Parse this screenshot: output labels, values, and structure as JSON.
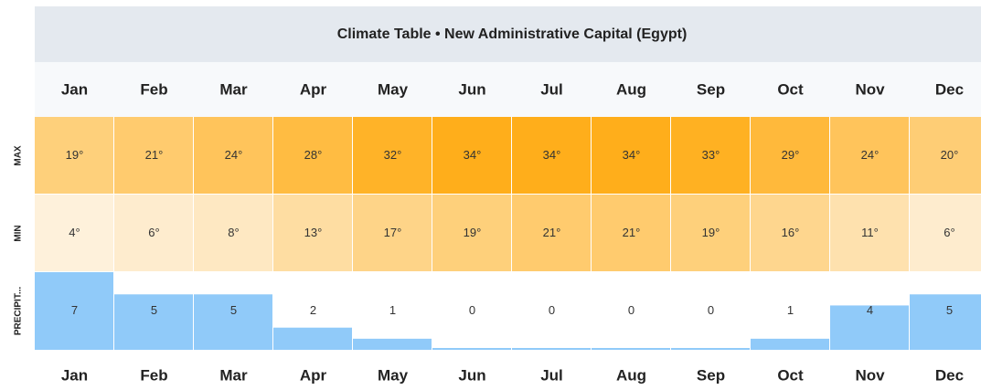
{
  "title": "Climate Table • New Administrative Capital (Egypt)",
  "months": [
    "Jan",
    "Feb",
    "Mar",
    "Apr",
    "May",
    "Jun",
    "Jul",
    "Aug",
    "Sep",
    "Oct",
    "Nov",
    "Dec"
  ],
  "heat_colors": [
    "#fef3e2",
    "#ffa500"
  ],
  "bar_color": "#90caf9",
  "rows": [
    {
      "label": "MAX",
      "values": [
        19,
        21,
        24,
        28,
        32,
        34,
        34,
        34,
        33,
        29,
        24,
        20
      ],
      "value_labels": [
        "19°",
        "21°",
        "24°",
        "28°",
        "32°",
        "34°",
        "34°",
        "34°",
        "33°",
        "29°",
        "24°",
        "20°"
      ]
    },
    {
      "label": "MIN",
      "values": [
        4,
        6,
        8,
        13,
        17,
        19,
        21,
        21,
        19,
        16,
        11,
        6
      ],
      "value_labels": [
        "4°",
        "6°",
        "8°",
        "13°",
        "17°",
        "19°",
        "21°",
        "21°",
        "19°",
        "16°",
        "11°",
        "6°"
      ]
    },
    {
      "label": "PRECIPIT...",
      "values": [
        7,
        5,
        5,
        2,
        1,
        0,
        0,
        0,
        0,
        1,
        4,
        5
      ]
    }
  ]
}
